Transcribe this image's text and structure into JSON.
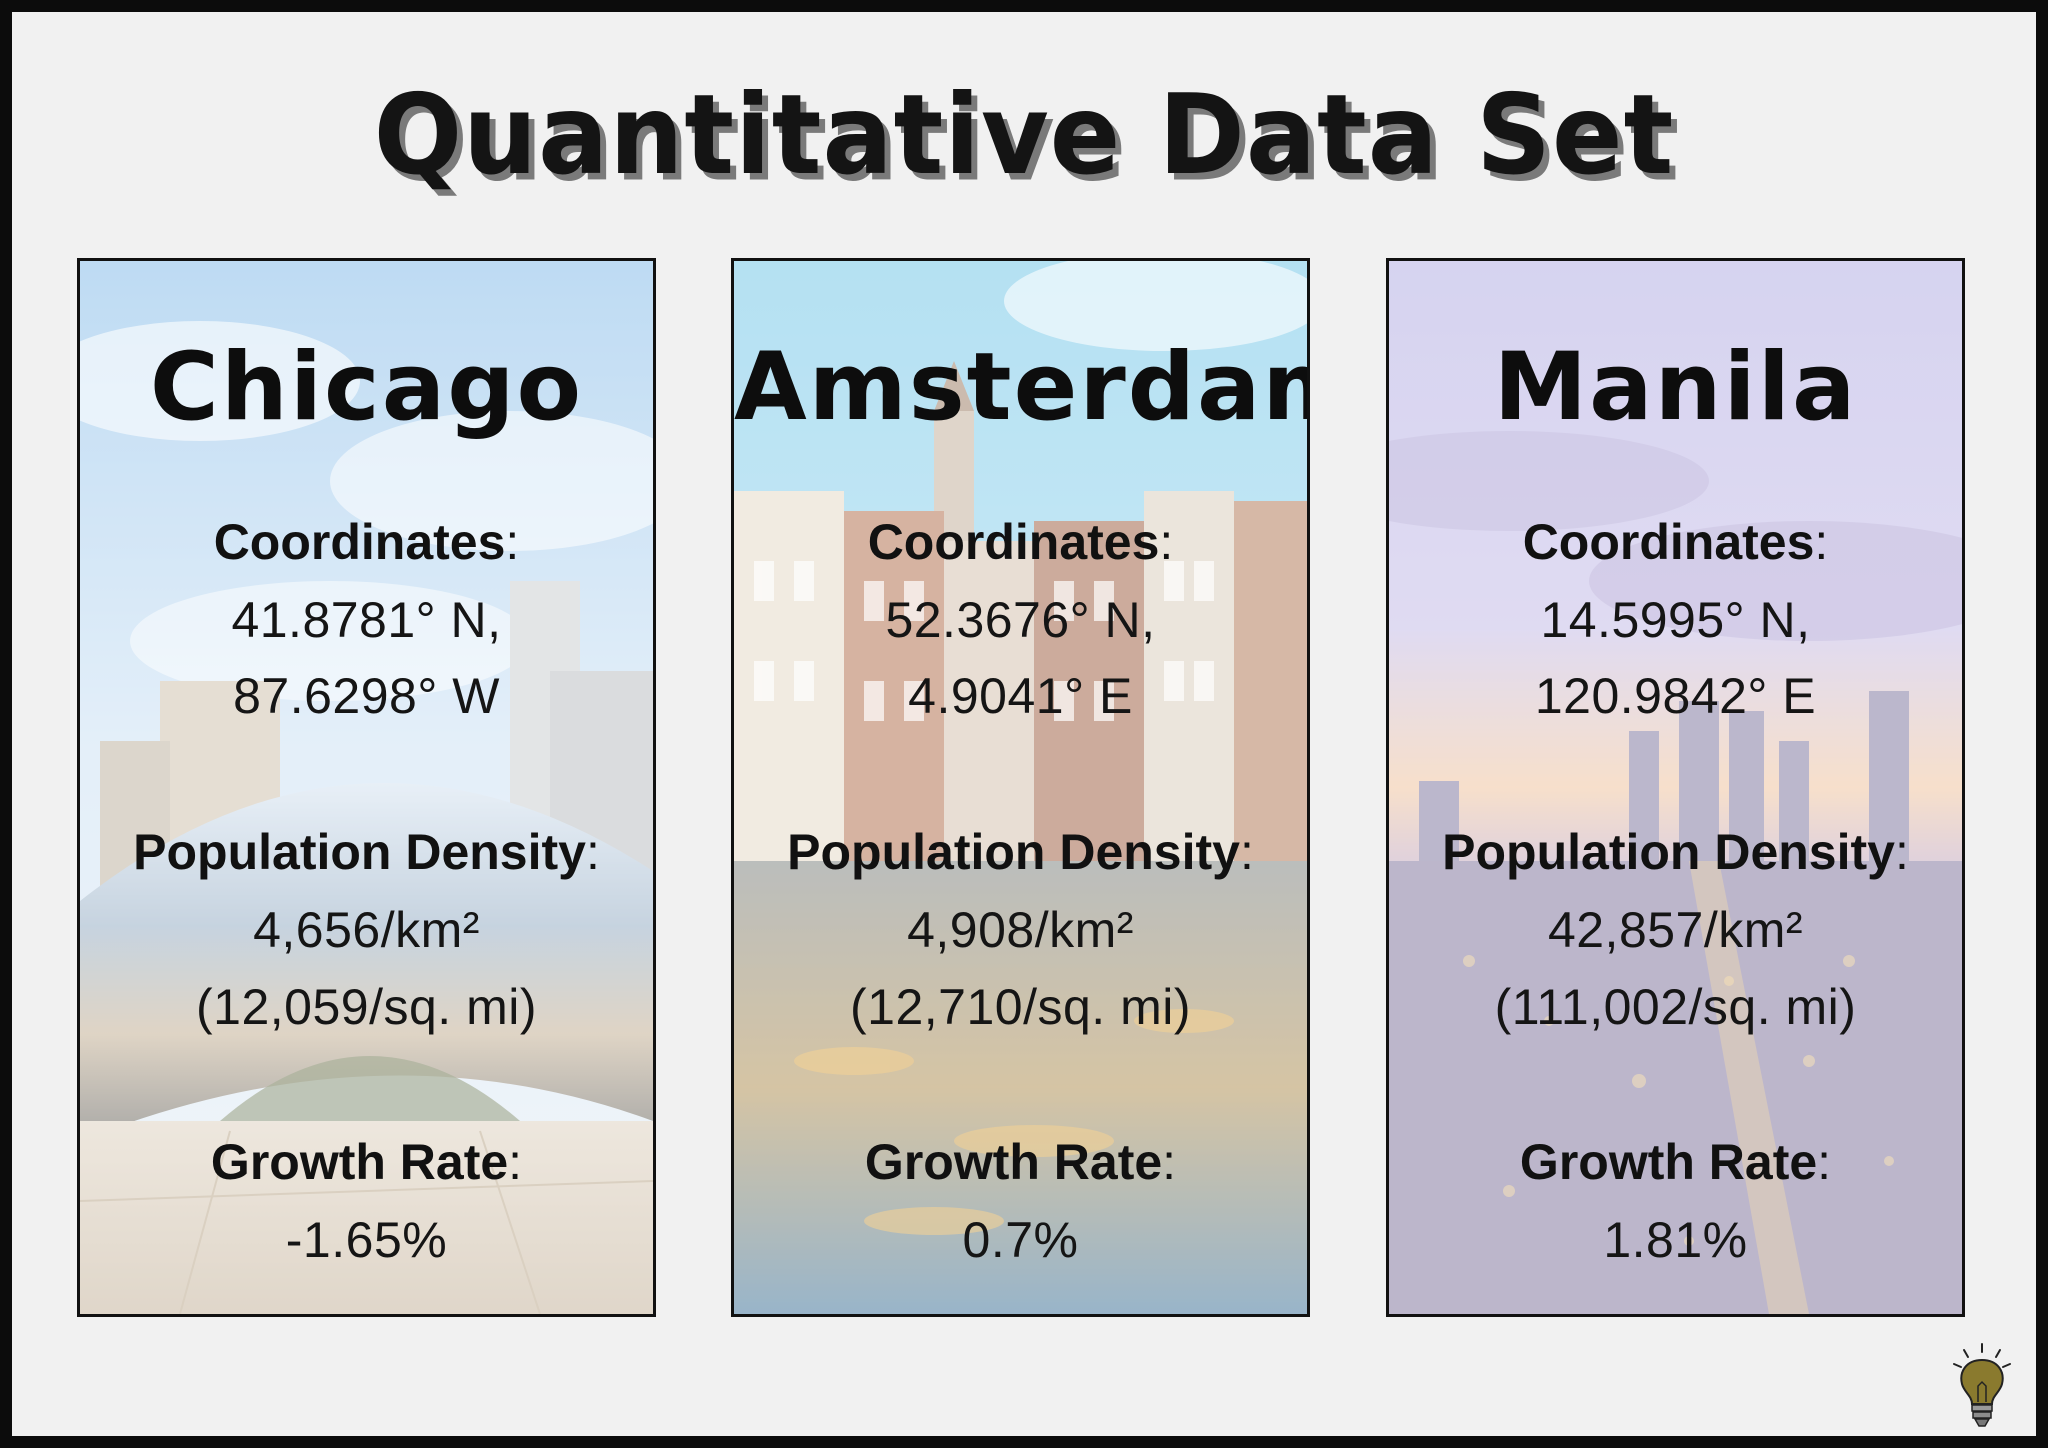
{
  "title": "Quantitative Data Set",
  "colors": {
    "page_background": "#f1f1f1",
    "card_border": "#111111",
    "bulb": "#8a7a2e"
  },
  "icons": {
    "corner": "lightbulb-icon"
  },
  "cards": [
    {
      "city": "Chicago",
      "coordinates_label": "Coordinates",
      "coordinates_line1": "41.8781° N,",
      "coordinates_line2": "87.6298° W",
      "density_label": "Population Density",
      "density_line1": "4,656/km²",
      "density_line2": "(12,059/sq. mi)",
      "growth_label": "Growth Rate",
      "growth_value": "-1.65%"
    },
    {
      "city": "Amsterdam",
      "coordinates_label": "Coordinates",
      "coordinates_line1": "52.3676° N,",
      "coordinates_line2": "4.9041° E",
      "density_label": "Population Density",
      "density_line1": "4,908/km²",
      "density_line2": "(12,710/sq. mi)",
      "growth_label": "Growth Rate",
      "growth_value": "0.7%"
    },
    {
      "city": "Manila",
      "coordinates_label": "Coordinates",
      "coordinates_line1": "14.5995° N,",
      "coordinates_line2": "120.9842° E",
      "density_label": "Population Density",
      "density_line1": "42,857/km²",
      "density_line2": "(111,002/sq. mi)",
      "growth_label": "Growth Rate",
      "growth_value": "1.81%"
    }
  ]
}
